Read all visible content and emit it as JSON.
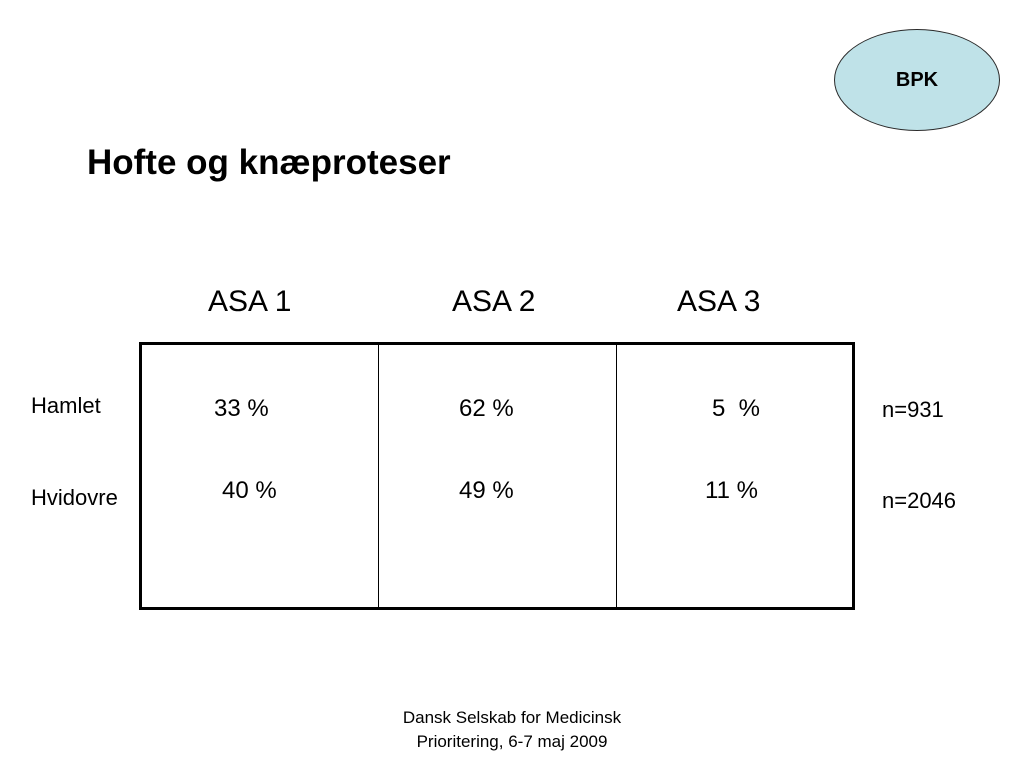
{
  "badge": {
    "label": "BPK",
    "fill_color": "#bfe2e8"
  },
  "title": "Hofte og knæproteser",
  "table": {
    "columns": [
      "ASA 1",
      "ASA 2",
      "ASA 3"
    ],
    "rows": [
      {
        "label": "Hamlet",
        "values": [
          "33 %",
          "62 %",
          "5  %"
        ],
        "n": "n=931"
      },
      {
        "label": "Hvidovre",
        "values": [
          "40 %",
          "49 %",
          "11 %"
        ],
        "n": "n=2046"
      }
    ]
  },
  "footer": {
    "line1": "Dansk Selskab for Medicinsk",
    "line2": "Prioritering, 6-7 maj 2009"
  }
}
